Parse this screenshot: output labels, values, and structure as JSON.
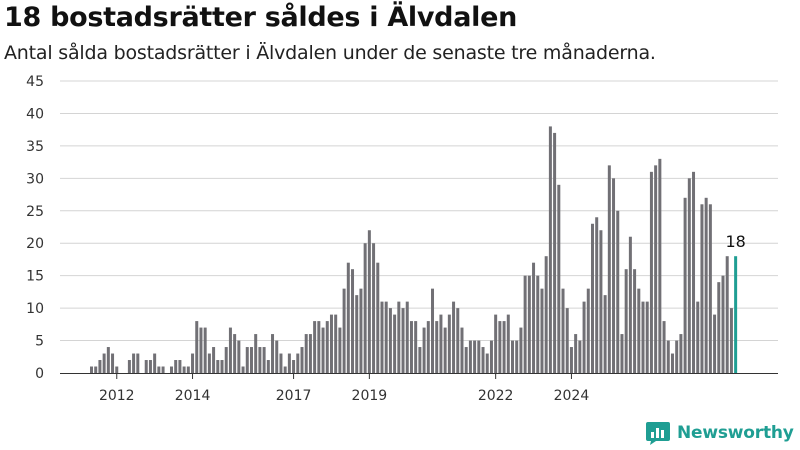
{
  "title": "18 bostadsrätter såldes i Älvdalen",
  "subtitle": "Antal sålda bostadsrätter i Älvdalen under de senaste tre månaderna.",
  "brand": {
    "name": "Newsworthy",
    "icon": "newsworthy-logo-icon",
    "color": "#1f9e93"
  },
  "chart_data": {
    "type": "bar",
    "title": "18 bostadsrätter såldes i Älvdalen",
    "subtitle": "Antal sålda bostadsrätter i Älvdalen under de senaste tre månaderna.",
    "xlabel": "",
    "ylabel": "",
    "x_ticks": [
      "2012",
      "2014",
      "2017",
      "2019",
      "2022",
      "2024"
    ],
    "x_tick_start_index": [
      6,
      24,
      48,
      66,
      96,
      114
    ],
    "y_ticks": [
      0,
      5,
      10,
      15,
      20,
      25,
      30,
      35,
      40,
      45
    ],
    "ylim": [
      0,
      45
    ],
    "grid": true,
    "bar_color": "#717075",
    "highlight_color": "#1f9e93",
    "highlight_label": "18",
    "period": "rolling three months, monthly steps",
    "values": [
      1,
      1,
      2,
      3,
      4,
      3,
      1,
      0,
      0,
      2,
      3,
      3,
      0,
      2,
      2,
      3,
      1,
      1,
      0,
      1,
      2,
      2,
      1,
      1,
      3,
      8,
      7,
      7,
      3,
      4,
      2,
      2,
      4,
      7,
      6,
      5,
      1,
      4,
      4,
      6,
      4,
      4,
      2,
      6,
      5,
      3,
      1,
      3,
      2,
      3,
      4,
      6,
      6,
      8,
      8,
      7,
      8,
      9,
      9,
      7,
      13,
      17,
      16,
      12,
      13,
      20,
      22,
      20,
      17,
      11,
      11,
      10,
      9,
      11,
      10,
      11,
      8,
      8,
      4,
      7,
      8,
      13,
      8,
      9,
      7,
      9,
      11,
      10,
      7,
      4,
      5,
      5,
      5,
      4,
      3,
      5,
      9,
      8,
      8,
      9,
      5,
      5,
      7,
      15,
      15,
      17,
      15,
      13,
      18,
      38,
      37,
      29,
      13,
      10,
      4,
      6,
      5,
      11,
      13,
      23,
      24,
      22,
      12,
      32,
      30,
      25,
      6,
      16,
      21,
      16,
      13,
      11,
      11,
      31,
      32,
      33,
      8,
      5,
      3,
      5,
      6,
      27,
      30,
      31,
      11,
      26,
      27,
      26,
      9,
      14,
      15,
      18,
      10,
      18
    ]
  }
}
